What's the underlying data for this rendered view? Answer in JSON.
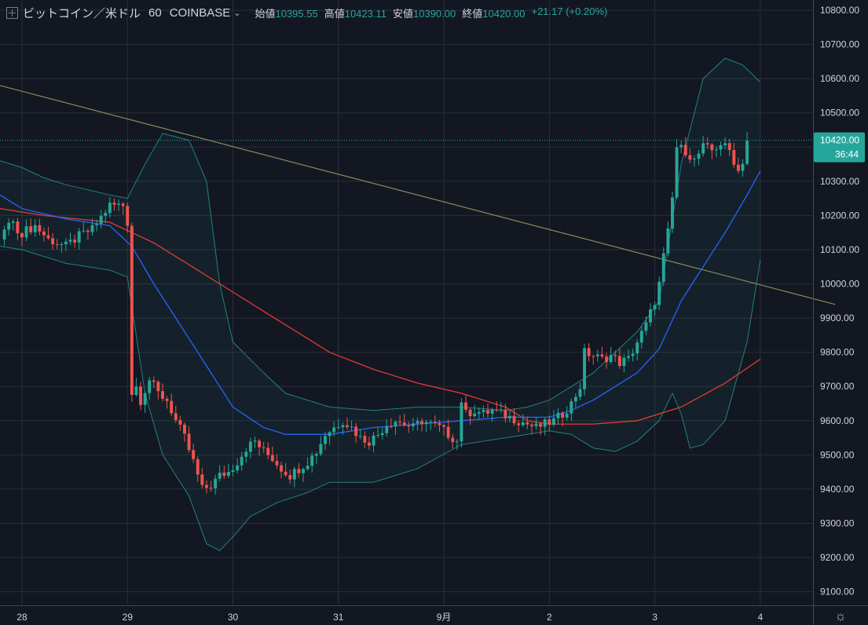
{
  "header": {
    "symbol": "ビットコイン／米ドル",
    "interval": "60",
    "exchange": "COINBASE",
    "open_label": "始値",
    "open": "10395.55",
    "high_label": "高値",
    "high": "10423.11",
    "low_label": "安値",
    "low": "10390.00",
    "close_label": "終値",
    "close": "10420.00",
    "change": "+21.17 (+0.20%)"
  },
  "colors": {
    "background": "#131722",
    "grid": "#2a2e39",
    "up": "#26a69a",
    "down": "#ef5350",
    "ma_fast": "#2962ff",
    "ma_slow": "#e53935",
    "band": "#26a69a",
    "trend": "#8d8a5a",
    "axis_text": "#d1d4dc"
  },
  "chart_data": {
    "type": "candlestick",
    "interval_minutes": 60,
    "y_axis_ticks": [
      9100,
      9200,
      9300,
      9400,
      9500,
      9600,
      9700,
      9800,
      9900,
      10000,
      10100,
      10200,
      10300,
      10400,
      10500,
      10600,
      10700,
      10800
    ],
    "y_axis_tick_labels": [
      "9100.00",
      "9200.00",
      "9300.00",
      "9400.00",
      "9500.00",
      "9600.00",
      "9700.00",
      "9800.00",
      "9900.00",
      "10000.00",
      "10100.00",
      "10200.00",
      "10300.00",
      "10400.00",
      "10500.00",
      "10600.00",
      "10700.00",
      "10800.00"
    ],
    "ylim": [
      9060,
      10830
    ],
    "x_axis_labels": [
      "28",
      "29",
      "30",
      "31",
      "9月",
      "2",
      "3",
      "4"
    ],
    "x_axis_label_hours": [
      0,
      24,
      48,
      72,
      96,
      120,
      144,
      168
    ],
    "x_range_hours": [
      -5,
      180
    ],
    "last_price": 10420.0,
    "last_price_label": "10420.00",
    "countdown": "36:44",
    "price_path": [
      [
        -5,
        10130
      ],
      [
        -3,
        10180
      ],
      [
        0,
        10150
      ],
      [
        3,
        10170
      ],
      [
        6,
        10130
      ],
      [
        10,
        10110
      ],
      [
        13,
        10140
      ],
      [
        16,
        10160
      ],
      [
        20,
        10230
      ],
      [
        23,
        10230
      ],
      [
        24,
        10180
      ],
      [
        25,
        9680
      ],
      [
        26,
        9700
      ],
      [
        27,
        9660
      ],
      [
        29,
        9720
      ],
      [
        31,
        9680
      ],
      [
        33,
        9660
      ],
      [
        35,
        9600
      ],
      [
        37,
        9550
      ],
      [
        39,
        9480
      ],
      [
        41,
        9400
      ],
      [
        43,
        9410
      ],
      [
        45,
        9440
      ],
      [
        47,
        9450
      ],
      [
        49,
        9480
      ],
      [
        51,
        9520
      ],
      [
        53,
        9540
      ],
      [
        55,
        9510
      ],
      [
        57,
        9490
      ],
      [
        59,
        9460
      ],
      [
        61,
        9440
      ],
      [
        63,
        9460
      ],
      [
        65,
        9480
      ],
      [
        67,
        9510
      ],
      [
        69,
        9560
      ],
      [
        71,
        9580
      ],
      [
        73,
        9600
      ],
      [
        75,
        9580
      ],
      [
        77,
        9550
      ],
      [
        79,
        9540
      ],
      [
        81,
        9560
      ],
      [
        83,
        9590
      ],
      [
        85,
        9600
      ],
      [
        87,
        9590
      ],
      [
        89,
        9580
      ],
      [
        91,
        9600
      ],
      [
        93,
        9590
      ],
      [
        95,
        9580
      ],
      [
        97,
        9560
      ],
      [
        99,
        9540
      ],
      [
        100,
        9660
      ],
      [
        101,
        9620
      ],
      [
        103,
        9630
      ],
      [
        105,
        9620
      ],
      [
        107,
        9630
      ],
      [
        109,
        9620
      ],
      [
        111,
        9610
      ],
      [
        113,
        9600
      ],
      [
        115,
        9590
      ],
      [
        117,
        9580
      ],
      [
        119,
        9590
      ],
      [
        121,
        9600
      ],
      [
        123,
        9620
      ],
      [
        125,
        9650
      ],
      [
        127,
        9700
      ],
      [
        128,
        9800
      ],
      [
        130,
        9790
      ],
      [
        132,
        9780
      ],
      [
        134,
        9790
      ],
      [
        136,
        9770
      ],
      [
        138,
        9780
      ],
      [
        140,
        9830
      ],
      [
        142,
        9880
      ],
      [
        144,
        9950
      ],
      [
        145,
        10000
      ],
      [
        146,
        10080
      ],
      [
        147,
        10150
      ],
      [
        148,
        10250
      ],
      [
        149,
        10400
      ],
      [
        151,
        10390
      ],
      [
        153,
        10360
      ],
      [
        155,
        10400
      ],
      [
        157,
        10390
      ],
      [
        159,
        10410
      ],
      [
        161,
        10390
      ],
      [
        163,
        10330
      ],
      [
        164,
        10360
      ],
      [
        165,
        10420
      ]
    ],
    "series": [
      {
        "name": "MA fast (blue)",
        "points": [
          [
            -5,
            10260
          ],
          [
            0,
            10220
          ],
          [
            10,
            10190
          ],
          [
            20,
            10170
          ],
          [
            25,
            10110
          ],
          [
            30,
            10000
          ],
          [
            35,
            9900
          ],
          [
            40,
            9800
          ],
          [
            45,
            9700
          ],
          [
            48,
            9640
          ],
          [
            55,
            9580
          ],
          [
            60,
            9560
          ],
          [
            70,
            9560
          ],
          [
            80,
            9580
          ],
          [
            90,
            9590
          ],
          [
            100,
            9600
          ],
          [
            110,
            9610
          ],
          [
            120,
            9610
          ],
          [
            125,
            9630
          ],
          [
            130,
            9660
          ],
          [
            135,
            9700
          ],
          [
            140,
            9740
          ],
          [
            145,
            9810
          ],
          [
            150,
            9950
          ],
          [
            155,
            10050
          ],
          [
            160,
            10150
          ],
          [
            165,
            10260
          ],
          [
            168,
            10330
          ]
        ]
      },
      {
        "name": "MA slow (red)",
        "points": [
          [
            -5,
            10220
          ],
          [
            5,
            10200
          ],
          [
            20,
            10180
          ],
          [
            30,
            10120
          ],
          [
            40,
            10040
          ],
          [
            50,
            9960
          ],
          [
            60,
            9880
          ],
          [
            70,
            9800
          ],
          [
            80,
            9750
          ],
          [
            90,
            9710
          ],
          [
            100,
            9680
          ],
          [
            110,
            9640
          ],
          [
            115,
            9600
          ],
          [
            120,
            9590
          ],
          [
            130,
            9590
          ],
          [
            140,
            9600
          ],
          [
            150,
            9640
          ],
          [
            160,
            9710
          ],
          [
            168,
            9780
          ]
        ]
      },
      {
        "name": "Bollinger upper",
        "points": [
          [
            -5,
            10360
          ],
          [
            0,
            10340
          ],
          [
            5,
            10310
          ],
          [
            10,
            10290
          ],
          [
            20,
            10260
          ],
          [
            24,
            10250
          ],
          [
            28,
            10350
          ],
          [
            32,
            10440
          ],
          [
            38,
            10420
          ],
          [
            42,
            10300
          ],
          [
            45,
            10000
          ],
          [
            48,
            9830
          ],
          [
            55,
            9740
          ],
          [
            60,
            9680
          ],
          [
            65,
            9660
          ],
          [
            70,
            9640
          ],
          [
            80,
            9630
          ],
          [
            90,
            9640
          ],
          [
            100,
            9640
          ],
          [
            110,
            9630
          ],
          [
            115,
            9640
          ],
          [
            120,
            9660
          ],
          [
            125,
            9700
          ],
          [
            130,
            9740
          ],
          [
            135,
            9800
          ],
          [
            140,
            9860
          ],
          [
            145,
            9950
          ],
          [
            150,
            10350
          ],
          [
            155,
            10600
          ],
          [
            160,
            10660
          ],
          [
            164,
            10640
          ],
          [
            168,
            10590
          ]
        ]
      },
      {
        "name": "Bollinger lower",
        "points": [
          [
            -5,
            10110
          ],
          [
            0,
            10100
          ],
          [
            10,
            10060
          ],
          [
            20,
            10040
          ],
          [
            24,
            10020
          ],
          [
            28,
            9680
          ],
          [
            32,
            9500
          ],
          [
            38,
            9380
          ],
          [
            42,
            9240
          ],
          [
            45,
            9220
          ],
          [
            48,
            9260
          ],
          [
            52,
            9320
          ],
          [
            58,
            9360
          ],
          [
            65,
            9390
          ],
          [
            70,
            9420
          ],
          [
            80,
            9420
          ],
          [
            90,
            9460
          ],
          [
            100,
            9530
          ],
          [
            110,
            9550
          ],
          [
            115,
            9560
          ],
          [
            120,
            9570
          ],
          [
            125,
            9560
          ],
          [
            130,
            9520
          ],
          [
            135,
            9510
          ],
          [
            140,
            9540
          ],
          [
            145,
            9600
          ],
          [
            148,
            9680
          ],
          [
            150,
            9620
          ],
          [
            152,
            9520
          ],
          [
            155,
            9530
          ],
          [
            160,
            9600
          ],
          [
            165,
            9830
          ],
          [
            168,
            10070
          ]
        ]
      },
      {
        "name": "Trend line",
        "points": [
          [
            -5,
            10580
          ],
          [
            185,
            9940
          ]
        ]
      }
    ]
  },
  "footer": {
    "settings_icon": "gear-icon"
  }
}
